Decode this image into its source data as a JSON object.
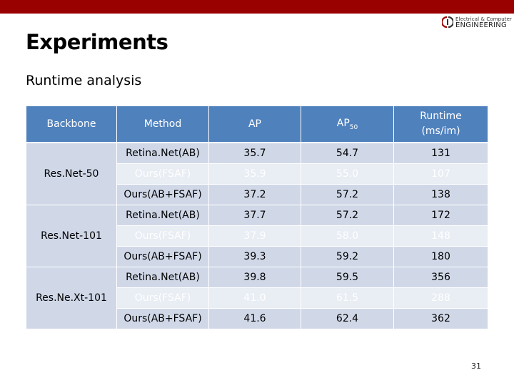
{
  "header": {
    "logo": {
      "line1": "Electrical & Computer",
      "line2": "ENGINEERING"
    }
  },
  "slide": {
    "title": "Experiments",
    "subtitle": "Runtime analysis",
    "page_number": "31"
  },
  "table": {
    "columns": {
      "backbone": "Backbone",
      "method": "Method",
      "ap": "AP",
      "ap50_base": "AP",
      "ap50_sub": "50",
      "runtime_line1": "Runtime",
      "runtime_line2": "(ms/im)"
    },
    "groups": [
      {
        "backbone": "Res.Net-50",
        "rows": [
          {
            "method": "Retina.Net(AB)",
            "ap": "35.7",
            "ap50": "54.7",
            "runtime": "131"
          },
          {
            "method": "Ours(FSAF)",
            "ap": "35.9",
            "ap50": "55.0",
            "runtime": "107"
          },
          {
            "method": "Ours(AB+FSAF)",
            "ap": "37.2",
            "ap50": "57.2",
            "runtime": "138"
          }
        ]
      },
      {
        "backbone": "Res.Net-101",
        "rows": [
          {
            "method": "Retina.Net(AB)",
            "ap": "37.7",
            "ap50": "57.2",
            "runtime": "172"
          },
          {
            "method": "Ours(FSAF)",
            "ap": "37.9",
            "ap50": "58.0",
            "runtime": "148"
          },
          {
            "method": "Ours(AB+FSAF)",
            "ap": "39.3",
            "ap50": "59.2",
            "runtime": "180"
          }
        ]
      },
      {
        "backbone": "Res.Ne.Xt-101",
        "rows": [
          {
            "method": "Retina.Net(AB)",
            "ap": "39.8",
            "ap50": "59.5",
            "runtime": "356"
          },
          {
            "method": "Ours(FSAF)",
            "ap": "41.0",
            "ap50": "61.5",
            "runtime": "288"
          },
          {
            "method": "Ours(AB+FSAF)",
            "ap": "41.6",
            "ap50": "62.4",
            "runtime": "362"
          }
        ]
      }
    ]
  },
  "colors": {
    "top_bar": "#990000",
    "header_fill": "#4f81bd",
    "row_dark": "#d0d8e8",
    "row_light": "#e9edf4"
  }
}
